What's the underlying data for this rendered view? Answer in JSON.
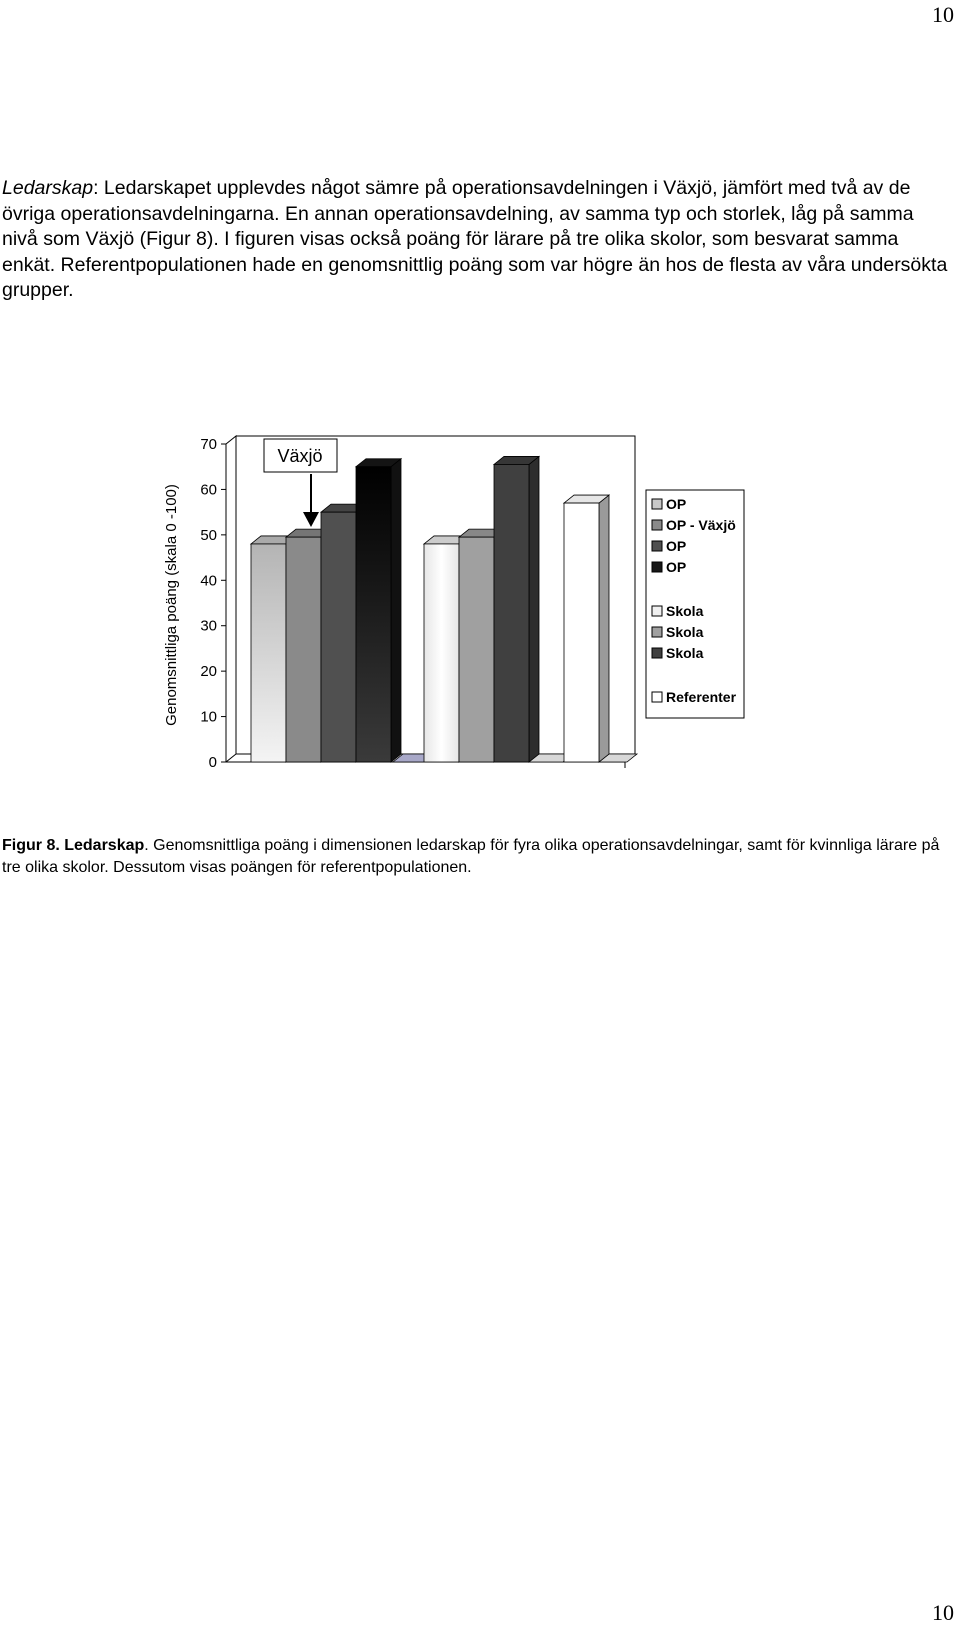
{
  "page": {
    "number_top": "10",
    "number_bottom": "10"
  },
  "paragraph": {
    "lead": "Ledarskap",
    "text": ": Ledarskapet upplevdes något sämre på operationsavdelningen i Växjö, jämfört med två av de övriga operationsavdelningarna. En annan operationsavdelning, av samma typ och storlek, låg på samma nivå som Växjö (Figur 8). I figuren visas också poäng för lärare på tre olika skolor, som besvarat samma enkät. Referentpopulationen hade en genomsnittlig poäng som var högre än hos de flesta av våra undersökta grupper."
  },
  "caption": {
    "label": "Figur 8. Ledarskap",
    "text": ". Genomsnittliga poäng i dimensionen ledarskap för fyra olika operationsavdelningar, samt för kvinnliga lärare på tre olika skolor.  Dessutom visas poängen för referentpopulationen."
  },
  "chart_data": {
    "type": "bar",
    "ylabel": "Genomsnittliga poäng (skala 0 -100)",
    "ylim": [
      0,
      70
    ],
    "yticks": [
      0,
      10,
      20,
      30,
      40,
      50,
      60,
      70
    ],
    "annotation": "Växjö",
    "annotation_target": "OP - Växjö",
    "grid": false,
    "legend_position": "right",
    "series": [
      {
        "name": "OP",
        "value": 48,
        "color": "#c8c8c8"
      },
      {
        "name": "OP - Växjö",
        "value": 49.5,
        "color": "#8a8a8a"
      },
      {
        "name": "OP",
        "value": 55,
        "color": "#505050"
      },
      {
        "name": "OP",
        "value": 65,
        "color": "#181818"
      },
      {
        "name": "Skola",
        "value": 48,
        "color": "#f0f0f0"
      },
      {
        "name": "Skola",
        "value": 49.5,
        "color": "#a0a0a0"
      },
      {
        "name": "Skola",
        "value": 65.5,
        "color": "#404040"
      },
      {
        "name": "Referenter",
        "value": 57,
        "color": "#ffffff"
      }
    ]
  }
}
